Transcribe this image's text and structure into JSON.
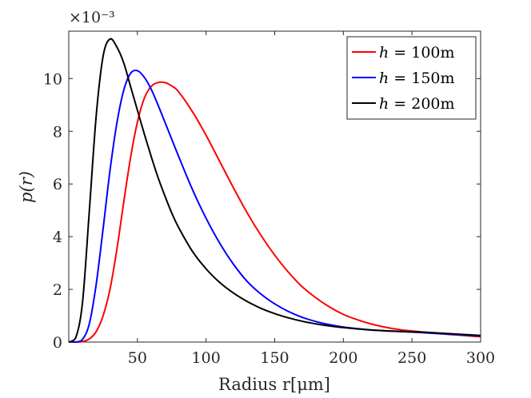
{
  "chart_data": {
    "type": "line",
    "title": "",
    "xlabel": "Radius r[μm]",
    "ylabel": "p(r)",
    "exponent_label": "×10⁻³",
    "xlim": [
      0,
      300
    ],
    "ylim": [
      0,
      11.8
    ],
    "x_ticks": [
      50,
      100,
      150,
      200,
      250,
      300
    ],
    "x_tick_labels": [
      "50",
      "100",
      "150",
      "200",
      "250",
      "300"
    ],
    "y_ticks": [
      0,
      2,
      4,
      6,
      8,
      10
    ],
    "y_tick_labels": [
      "0",
      "2",
      "4",
      "6",
      "8",
      "10"
    ],
    "grid": false,
    "legend_position": "top-right",
    "x": [
      0,
      5,
      10,
      15,
      20,
      25,
      30,
      35,
      40,
      45,
      50,
      55,
      60,
      65,
      70,
      75,
      80,
      90,
      100,
      110,
      120,
      130,
      140,
      150,
      160,
      170,
      180,
      190,
      200,
      210,
      220,
      230,
      240,
      250,
      260,
      270,
      280,
      290,
      300
    ],
    "series": [
      {
        "name": "h = 100m",
        "legend_var": "h",
        "legend_value": " = 100m",
        "color": "#ff0000",
        "values": [
          0,
          0,
          0.02,
          0.12,
          0.4,
          1.0,
          2.0,
          3.5,
          5.3,
          7.0,
          8.35,
          9.25,
          9.7,
          9.85,
          9.85,
          9.72,
          9.5,
          8.75,
          7.85,
          6.85,
          5.85,
          4.9,
          4.05,
          3.3,
          2.65,
          2.1,
          1.68,
          1.33,
          1.05,
          0.85,
          0.69,
          0.57,
          0.48,
          0.42,
          0.37,
          0.32,
          0.28,
          0.24,
          0.2
        ]
      },
      {
        "name": "h = 150m",
        "legend_var": "h",
        "legend_value": " = 150m",
        "color": "#0000ff",
        "values": [
          0,
          0,
          0.1,
          0.7,
          2.2,
          4.3,
          6.5,
          8.3,
          9.55,
          10.2,
          10.3,
          10.05,
          9.6,
          9.0,
          8.35,
          7.7,
          7.05,
          5.8,
          4.7,
          3.75,
          2.95,
          2.3,
          1.82,
          1.45,
          1.16,
          0.94,
          0.78,
          0.66,
          0.57,
          0.51,
          0.46,
          0.43,
          0.4,
          0.38,
          0.35,
          0.32,
          0.29,
          0.26,
          0.23
        ]
      },
      {
        "name": "h = 200m",
        "legend_var": "h",
        "legend_value": " = 200m",
        "color": "#000000",
        "values": [
          0,
          0.15,
          1.5,
          5.0,
          8.6,
          10.85,
          11.5,
          11.2,
          10.6,
          9.7,
          8.8,
          7.9,
          7.05,
          6.25,
          5.55,
          4.9,
          4.35,
          3.45,
          2.78,
          2.26,
          1.86,
          1.54,
          1.28,
          1.08,
          0.92,
          0.79,
          0.69,
          0.61,
          0.55,
          0.5,
          0.46,
          0.43,
          0.41,
          0.39,
          0.37,
          0.34,
          0.31,
          0.28,
          0.25
        ]
      }
    ]
  }
}
